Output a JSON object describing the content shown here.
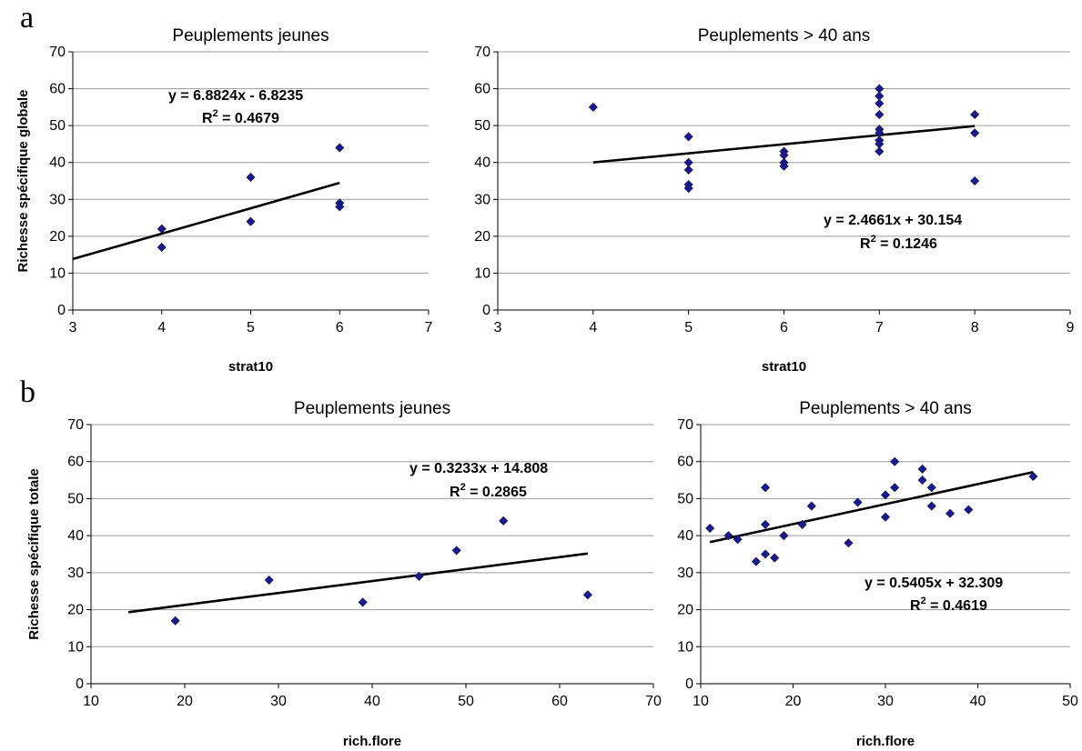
{
  "panel_labels": [
    "a",
    "b"
  ],
  "chart_data": [
    {
      "type": "scatter",
      "panel": "a",
      "title": "Peuplements jeunes",
      "xlabel": "strat10",
      "ylabel": "Richesse spécifique globale",
      "xlim": [
        3,
        7
      ],
      "xticks": [
        3,
        4,
        5,
        6,
        7
      ],
      "ylim": [
        0,
        70
      ],
      "yticks": [
        0,
        10,
        20,
        30,
        40,
        50,
        60,
        70
      ],
      "grid": "horizontal",
      "point_color": "#1a1a8c",
      "points": [
        [
          4,
          22
        ],
        [
          4,
          17
        ],
        [
          5,
          36
        ],
        [
          5,
          24
        ],
        [
          6,
          44
        ],
        [
          6,
          29
        ],
        [
          6,
          28
        ]
      ],
      "trendline": {
        "slope": 6.8824,
        "intercept": -6.8235,
        "x_range": [
          3,
          6
        ]
      },
      "equation": "y = 6.8824x - 6.8235",
      "r2_label": "R",
      "r2_exp": "2",
      "r2_value": " = 0.4679"
    },
    {
      "type": "scatter",
      "panel": "a",
      "title": "Peuplements > 40 ans",
      "xlabel": "strat10",
      "ylabel": "",
      "xlim": [
        3,
        9
      ],
      "xticks": [
        3,
        4,
        5,
        6,
        7,
        8,
        9
      ],
      "ylim": [
        0,
        70
      ],
      "yticks": [
        0,
        10,
        20,
        30,
        40,
        50,
        60,
        70
      ],
      "grid": "horizontal",
      "point_color": "#1a1a8c",
      "points": [
        [
          4,
          55
        ],
        [
          5,
          47
        ],
        [
          5,
          40
        ],
        [
          5,
          38
        ],
        [
          5,
          34
        ],
        [
          5,
          33
        ],
        [
          6,
          43
        ],
        [
          6,
          42
        ],
        [
          6,
          40
        ],
        [
          6,
          39
        ],
        [
          7,
          60
        ],
        [
          7,
          58
        ],
        [
          7,
          56
        ],
        [
          7,
          53
        ],
        [
          7,
          49
        ],
        [
          7,
          48
        ],
        [
          7,
          46
        ],
        [
          7,
          45
        ],
        [
          7,
          43
        ],
        [
          8,
          53
        ],
        [
          8,
          48
        ],
        [
          8,
          35
        ]
      ],
      "trendline": {
        "slope": 2.4661,
        "intercept": 30.154,
        "x_range": [
          4,
          8
        ]
      },
      "equation": "y = 2.4661x + 30.154",
      "r2_label": "R",
      "r2_exp": "2",
      "r2_value": " = 0.1246"
    },
    {
      "type": "scatter",
      "panel": "b",
      "title": "Peuplements jeunes",
      "xlabel": "rich.flore",
      "ylabel": "Richesse spécifique totale",
      "xlim": [
        10,
        70
      ],
      "xticks": [
        10,
        20,
        30,
        40,
        50,
        60,
        70
      ],
      "ylim": [
        0,
        70
      ],
      "yticks": [
        0,
        10,
        20,
        30,
        40,
        50,
        60,
        70
      ],
      "grid": "horizontal",
      "point_color": "#1a1a8c",
      "points": [
        [
          19,
          17
        ],
        [
          29,
          28
        ],
        [
          39,
          22
        ],
        [
          45,
          29
        ],
        [
          49,
          36
        ],
        [
          54,
          44
        ],
        [
          63,
          24
        ]
      ],
      "trendline": {
        "slope": 0.3233,
        "intercept": 14.808,
        "x_range": [
          14,
          63
        ]
      },
      "equation": "y = 0.3233x + 14.808",
      "r2_label": "R",
      "r2_exp": "2",
      "r2_value": " = 0.2865"
    },
    {
      "type": "scatter",
      "panel": "b",
      "title": "Peuplements > 40 ans",
      "xlabel": "rich.flore",
      "ylabel": "",
      "xlim": [
        10,
        50
      ],
      "xticks": [
        10,
        20,
        30,
        40,
        50
      ],
      "ylim": [
        0,
        70
      ],
      "yticks": [
        0,
        10,
        20,
        30,
        40,
        50,
        60,
        70
      ],
      "grid": "horizontal",
      "point_color": "#1a1a8c",
      "points": [
        [
          11,
          42
        ],
        [
          13,
          40
        ],
        [
          14,
          39
        ],
        [
          16,
          33
        ],
        [
          17,
          53
        ],
        [
          17,
          43
        ],
        [
          17,
          35
        ],
        [
          18,
          34
        ],
        [
          19,
          40
        ],
        [
          21,
          43
        ],
        [
          22,
          48
        ],
        [
          26,
          38
        ],
        [
          27,
          49
        ],
        [
          30,
          51
        ],
        [
          30,
          45
        ],
        [
          31,
          60
        ],
        [
          31,
          53
        ],
        [
          34,
          58
        ],
        [
          34,
          55
        ],
        [
          35,
          53
        ],
        [
          35,
          48
        ],
        [
          37,
          46
        ],
        [
          39,
          47
        ],
        [
          46,
          56
        ]
      ],
      "trendline": {
        "slope": 0.5405,
        "intercept": 32.309,
        "x_range": [
          11,
          46
        ]
      },
      "equation": "y = 0.5405x + 32.309",
      "r2_label": "R",
      "r2_exp": "2",
      "r2_value": " = 0.4619"
    }
  ]
}
